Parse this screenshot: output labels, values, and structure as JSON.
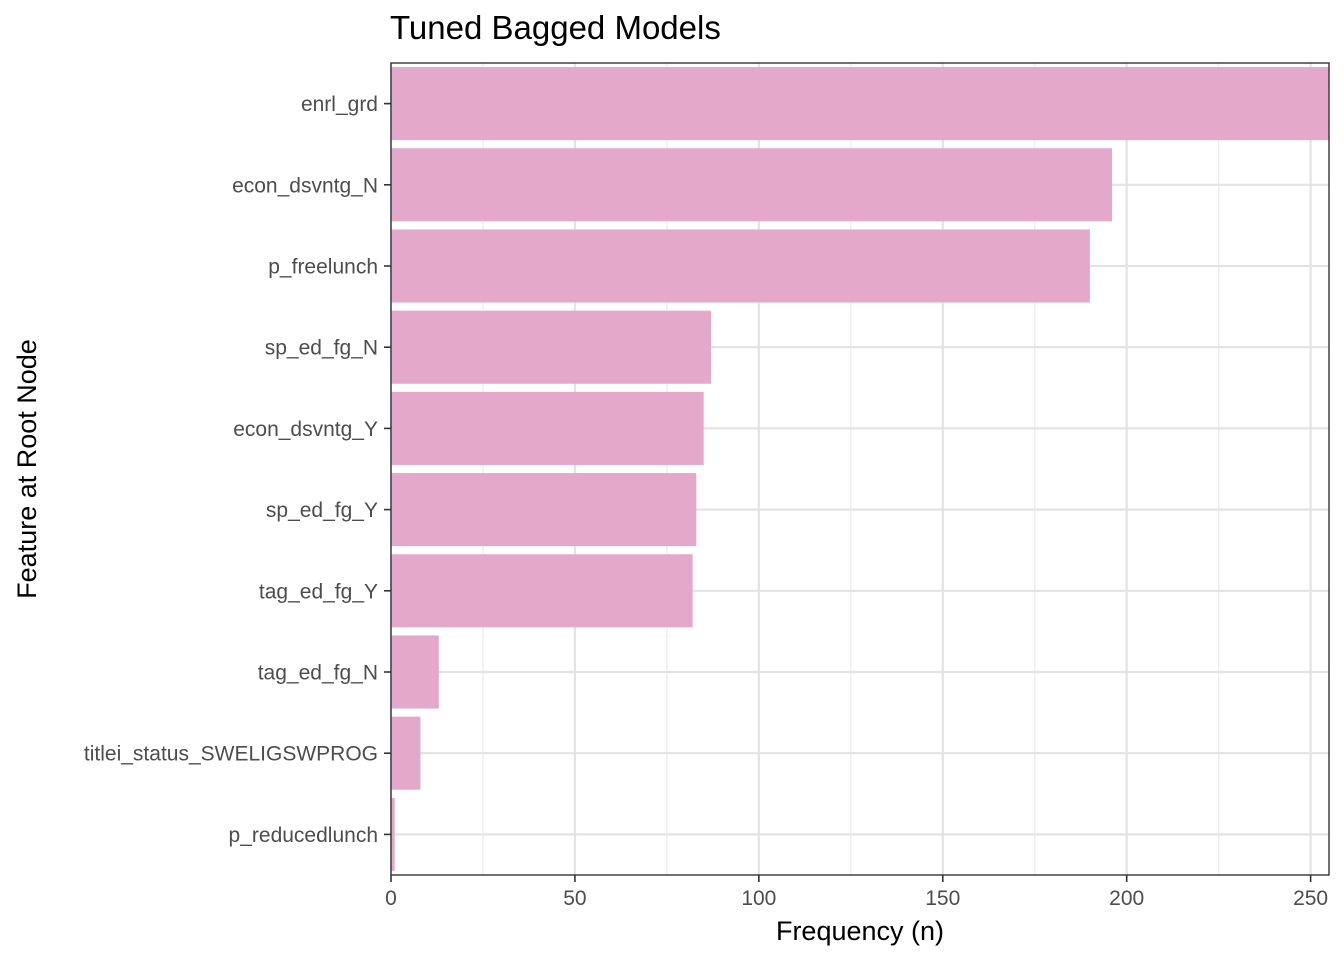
{
  "chart_data": {
    "type": "bar",
    "orientation": "horizontal",
    "title": "Tuned Bagged Models",
    "xlabel": "Frequency (n)",
    "ylabel": "Feature at Root Node",
    "categories": [
      "enrl_grd",
      "econ_dsvntg_N",
      "p_freelunch",
      "sp_ed_fg_N",
      "econ_dsvntg_Y",
      "sp_ed_fg_Y",
      "tag_ed_fg_Y",
      "tag_ed_fg_N",
      "titlei_status_SWELIGSWPROG",
      "p_reducedlunch"
    ],
    "values": [
      258,
      196,
      190,
      87,
      85,
      83,
      82,
      13,
      8,
      1
    ],
    "xlim": [
      0,
      255
    ],
    "xticks": [
      0,
      50,
      100,
      150,
      200,
      250
    ],
    "grid": true,
    "bar_color": "#e4a8cb",
    "panel_border": true
  }
}
